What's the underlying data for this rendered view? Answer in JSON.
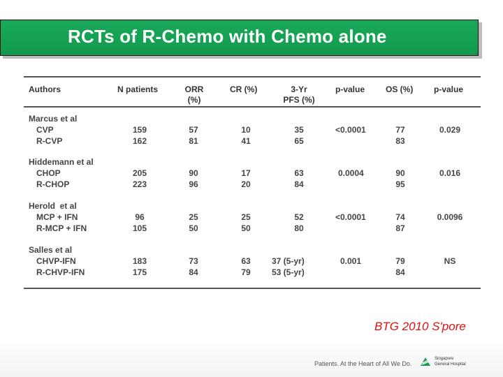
{
  "slide": {
    "title": "RCTs of R-Chemo with Chemo alone",
    "brand": "BTG 2010 S'pore",
    "tagline": "Patients. At the Heart of All We Do.",
    "logo_text": [
      "Singapore",
      "General Hospital"
    ]
  },
  "table": {
    "headers": {
      "authors": "Authors",
      "n_patients": "N patients",
      "orr": [
        "ORR",
        "(%)"
      ],
      "cr": "CR (%)",
      "pfs": [
        "3-Yr",
        "PFS (%)"
      ],
      "pvalue1": "p-value",
      "os": "OS (%)",
      "pvalue2": "p-value"
    },
    "groups": [
      {
        "author": "Marcus et al",
        "arms": [
          {
            "regimen": "CVP",
            "n": "159",
            "orr": "57",
            "cr": "10",
            "pfs": "35",
            "os": "77"
          },
          {
            "regimen": "R-CVP",
            "n": "162",
            "orr": "81",
            "cr": "41",
            "pfs": "65",
            "os": "83"
          }
        ],
        "p_pfs": "<0.0001",
        "p_os": "0.029"
      },
      {
        "author": "Hiddemann et al",
        "arms": [
          {
            "regimen": "CHOP",
            "n": "205",
            "orr": "90",
            "cr": "17",
            "pfs": "63",
            "os": "90"
          },
          {
            "regimen": "R-CHOP",
            "n": "223",
            "orr": "96",
            "cr": "20",
            "pfs": "84",
            "os": "95"
          }
        ],
        "p_pfs": "0.0004",
        "p_os": "0.016"
      },
      {
        "author": "Herold  et al",
        "arms": [
          {
            "regimen": "MCP + IFN",
            "n": "96",
            "orr": "25",
            "cr": "25",
            "pfs": "52",
            "os": "74"
          },
          {
            "regimen": "R-MCP + IFN",
            "n": "105",
            "orr": "50",
            "cr": "50",
            "pfs": "80",
            "os": "87"
          }
        ],
        "p_pfs": "<0.0001",
        "p_os": "0.0096"
      },
      {
        "author": "Salles et al",
        "arms": [
          {
            "regimen": "CHVP-IFN",
            "n": "183",
            "orr": "73",
            "cr": "63",
            "pfs": "37 (5-yr)",
            "os": "79"
          },
          {
            "regimen": "R-CHVP-IFN",
            "n": "175",
            "orr": "84",
            "cr": "79",
            "pfs": "53 (5-yr)",
            "os": "84"
          }
        ],
        "p_pfs": "0.001",
        "p_os": "NS"
      }
    ]
  }
}
